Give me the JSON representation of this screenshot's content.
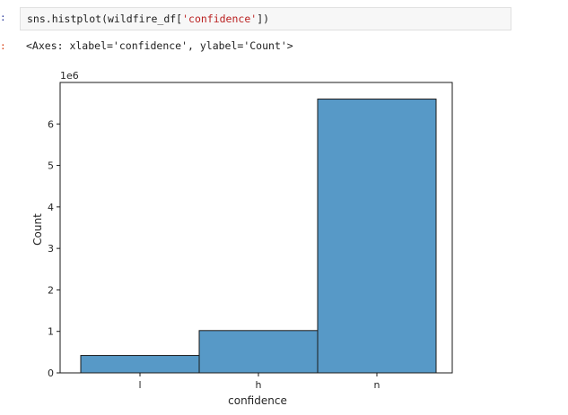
{
  "notebook": {
    "input_prompt": ":",
    "code": {
      "prefix": "sns.histplot(wildfire_df[",
      "string": "'confidence'",
      "suffix": "])"
    },
    "output_prompt": ":",
    "output_text": "<Axes: xlabel='confidence', ylabel='Count'>"
  },
  "chart_data": {
    "type": "bar",
    "categories": [
      "l",
      "h",
      "n"
    ],
    "values": [
      420000,
      1020000,
      6600000
    ],
    "xlabel": "confidence",
    "ylabel": "Count",
    "offset_text": "1e6",
    "y_ticks": [
      0,
      1,
      2,
      3,
      4,
      5,
      6
    ],
    "ylim": [
      0,
      7000000
    ],
    "bar_color": "#5799c7",
    "edge_color": "#1a1a1a",
    "grid": false
  }
}
